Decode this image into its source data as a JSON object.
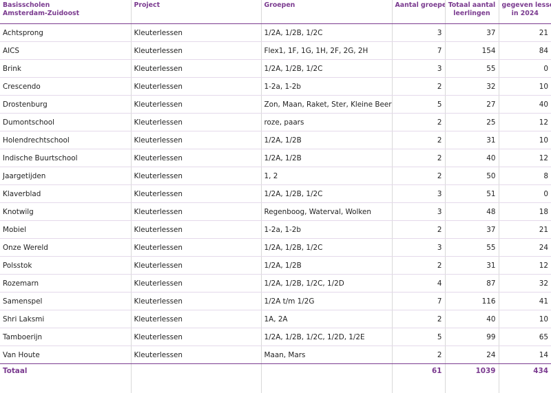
{
  "header": {
    "school_line1": "Basisscholen",
    "school_line2": "Amsterdam-Zuidoost",
    "project": "Project",
    "groepen": "Groepen",
    "aantal_groepen": "Aantal groepen",
    "totaal_line1": "Totaal aantal",
    "totaal_line2": "leerlingen",
    "lessen_line1": "gegeven lessen",
    "lessen_line2": "in 2024"
  },
  "rows": [
    {
      "school": "Achtsprong",
      "project": "Kleuterlessen",
      "groepen": "1/2A, 1/2B, 1/2C",
      "aantal": "3",
      "leerlingen": "37",
      "lessen": "21"
    },
    {
      "school": "AICS",
      "project": "Kleuterlessen",
      "groepen": "Flex1, 1F, 1G, 1H, 2F, 2G, 2H",
      "aantal": "7",
      "leerlingen": "154",
      "lessen": "84"
    },
    {
      "school": "Brink",
      "project": "Kleuterlessen",
      "groepen": "1/2A, 1/2B, 1/2C",
      "aantal": "3",
      "leerlingen": "55",
      "lessen": "0"
    },
    {
      "school": "Crescendo",
      "project": "Kleuterlessen",
      "groepen": "1-2a, 1-2b",
      "aantal": "2",
      "leerlingen": "32",
      "lessen": "10"
    },
    {
      "school": "Drostenburg",
      "project": "Kleuterlessen",
      "groepen": "Zon, Maan, Raket, Ster, Kleine Beer",
      "aantal": "5",
      "leerlingen": "27",
      "lessen": "40"
    },
    {
      "school": "Dumontschool",
      "project": "Kleuterlessen",
      "groepen": "roze, paars",
      "aantal": "2",
      "leerlingen": "25",
      "lessen": "12"
    },
    {
      "school": "Holendrechtschool",
      "project": "Kleuterlessen",
      "groepen": "1/2A, 1/2B",
      "aantal": "2",
      "leerlingen": "31",
      "lessen": "10"
    },
    {
      "school": "Indische Buurtschool",
      "project": "Kleuterlessen",
      "groepen": "1/2A, 1/2B",
      "aantal": "2",
      "leerlingen": "40",
      "lessen": "12"
    },
    {
      "school": "Jaargetijden",
      "project": "Kleuterlessen",
      "groepen": "1, 2",
      "aantal": "2",
      "leerlingen": "50",
      "lessen": "8"
    },
    {
      "school": "Klaverblad",
      "project": "Kleuterlessen",
      "groepen": " 1/2A, 1/2B, 1/2C",
      "aantal": "3",
      "leerlingen": "51",
      "lessen": "0"
    },
    {
      "school": "Knotwilg",
      "project": "Kleuterlessen",
      "groepen": "Regenboog, Waterval, Wolken",
      "aantal": "3",
      "leerlingen": "48",
      "lessen": "18"
    },
    {
      "school": "Mobiel",
      "project": "Kleuterlessen",
      "groepen": "1-2a, 1-2b",
      "aantal": "2",
      "leerlingen": "37",
      "lessen": "21"
    },
    {
      "school": "Onze Wereld",
      "project": "Kleuterlessen",
      "groepen": "1/2A, 1/2B, 1/2C",
      "aantal": "3",
      "leerlingen": "55",
      "lessen": "24"
    },
    {
      "school": "Polsstok",
      "project": "Kleuterlessen",
      "groepen": "1/2A, 1/2B",
      "aantal": "2",
      "leerlingen": "31",
      "lessen": "12"
    },
    {
      "school": "Rozemarn",
      "project": "Kleuterlessen",
      "groepen": " 1/2A, 1/2B, 1/2C, 1/2D",
      "aantal": "4",
      "leerlingen": "87",
      "lessen": "32"
    },
    {
      "school": "Samenspel",
      "project": "Kleuterlessen",
      "groepen": "1/2A t/m 1/2G",
      "aantal": "7",
      "leerlingen": "116",
      "lessen": "41"
    },
    {
      "school": "Shri Laksmi",
      "project": "Kleuterlessen",
      "groepen": "1A, 2A",
      "aantal": "2",
      "leerlingen": "40",
      "lessen": "10"
    },
    {
      "school": "Tamboerijn",
      "project": "Kleuterlessen",
      "groepen": "1/2A, 1/2B, 1/2C, 1/2D, 1/2E",
      "aantal": "5",
      "leerlingen": "99",
      "lessen": "65"
    },
    {
      "school": "Van Houte",
      "project": "Kleuterlessen",
      "groepen": "Maan, Mars",
      "aantal": "2",
      "leerlingen": "24",
      "lessen": "14"
    }
  ],
  "totals": {
    "label": "Totaal",
    "aantal": "61",
    "leerlingen": "1039",
    "lessen": "434"
  },
  "colors": {
    "accent": "#7a3a8f",
    "row_divider": "#e4d9ea",
    "column_divider": "#d8d8d8"
  }
}
